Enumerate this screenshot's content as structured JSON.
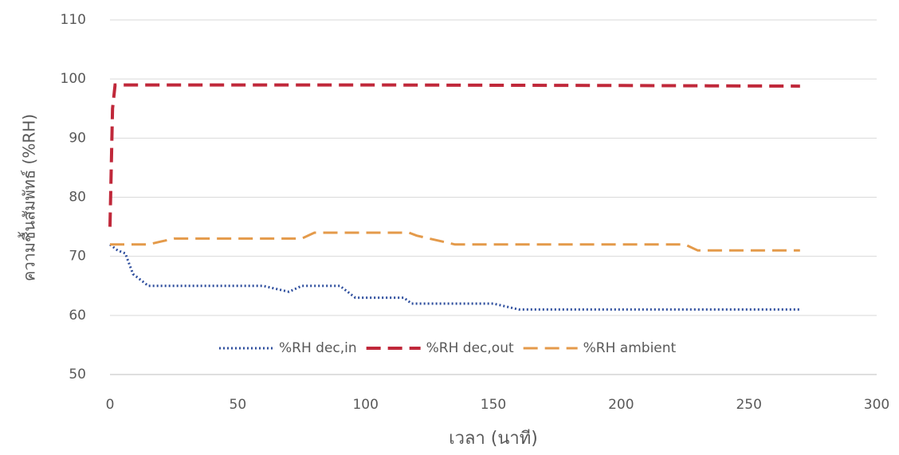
{
  "chart_data": {
    "type": "line",
    "xlabel": "เวลา (นาที)",
    "ylabel": "ความชื้นสัมพัทธ์ (%RH)",
    "xlim": [
      0,
      300
    ],
    "xticks": [
      0,
      50,
      100,
      150,
      200,
      250,
      300
    ],
    "ylim": [
      50,
      110
    ],
    "yticks": [
      50,
      60,
      70,
      80,
      90,
      100,
      110
    ],
    "grid": true,
    "legend": "bottom",
    "series": [
      {
        "name": "%RH dec,in",
        "color": "#2f4f9e",
        "style": "dotted",
        "x": [
          0,
          3,
          6,
          9,
          12,
          15,
          20,
          30,
          40,
          50,
          60,
          65,
          70,
          75,
          80,
          90,
          93,
          96,
          110,
          115,
          118,
          125,
          140,
          150,
          155,
          160,
          200,
          270
        ],
        "values": [
          72,
          71,
          70.5,
          67,
          66,
          65,
          65,
          65,
          65,
          65,
          65,
          64.5,
          64,
          65,
          65,
          65,
          64,
          63,
          63,
          63,
          62,
          62,
          62,
          62,
          61.5,
          61,
          61,
          61
        ]
      },
      {
        "name": "%RH dec,out",
        "color": "#c0283a",
        "style": "dashed",
        "x": [
          0,
          1,
          2,
          5,
          100,
          200,
          270
        ],
        "values": [
          75,
          95,
          99,
          99,
          99,
          98.9,
          98.8
        ]
      },
      {
        "name": "%RH ambient",
        "color": "#e49a4a",
        "style": "dashed",
        "x": [
          0,
          10,
          15,
          20,
          25,
          60,
          75,
          80,
          90,
          117,
          120,
          125,
          130,
          135,
          140,
          170,
          220,
          225,
          230,
          270
        ],
        "values": [
          72,
          72,
          72,
          72.5,
          73,
          73,
          73,
          74,
          74,
          74,
          73.5,
          73,
          72.5,
          72,
          72,
          72,
          72,
          72,
          71,
          71
        ]
      }
    ]
  }
}
